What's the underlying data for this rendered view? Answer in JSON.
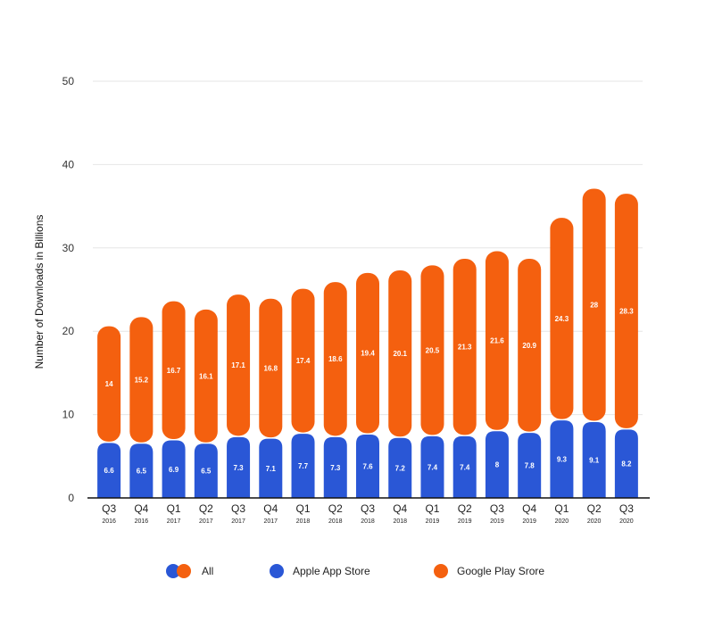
{
  "chart_data": {
    "type": "bar",
    "stacked": true,
    "categories": [
      "Q3",
      "Q4",
      "Q1",
      "Q2",
      "Q3",
      "Q4",
      "Q1",
      "Q2",
      "Q3",
      "Q4",
      "Q1",
      "Q2",
      "Q3",
      "Q4",
      "Q1",
      "Q2",
      "Q3"
    ],
    "category_years": [
      "2016",
      "2016",
      "2017",
      "2017",
      "2017",
      "2017",
      "2018",
      "2018",
      "2018",
      "2018",
      "2019",
      "2019",
      "2019",
      "2019",
      "2020",
      "2020",
      "2020"
    ],
    "series": [
      {
        "name": "Apple App Store",
        "color": "#2a57d6",
        "values": [
          6.6,
          6.5,
          6.9,
          6.5,
          7.3,
          7.1,
          7.7,
          7.3,
          7.6,
          7.2,
          7.4,
          7.4,
          8,
          7.8,
          9.3,
          9.1,
          8.2
        ]
      },
      {
        "name": "Google Play Srore",
        "color": "#f4600f",
        "values": [
          14,
          15.2,
          16.7,
          16.1,
          17.1,
          16.8,
          17.4,
          18.6,
          19.4,
          20.1,
          20.5,
          21.3,
          21.6,
          20.9,
          24.3,
          28,
          28.3
        ]
      }
    ],
    "ylabel": "Number of Downloads in Billions",
    "xlabel": "",
    "ylim": [
      0,
      50
    ],
    "yticks": [
      0,
      10,
      20,
      30,
      40,
      50
    ],
    "grid": true,
    "legend_position": "bottom"
  },
  "legend": {
    "all_label": "All",
    "apple_label": "Apple App Store",
    "google_label": "Google Play Srore"
  }
}
